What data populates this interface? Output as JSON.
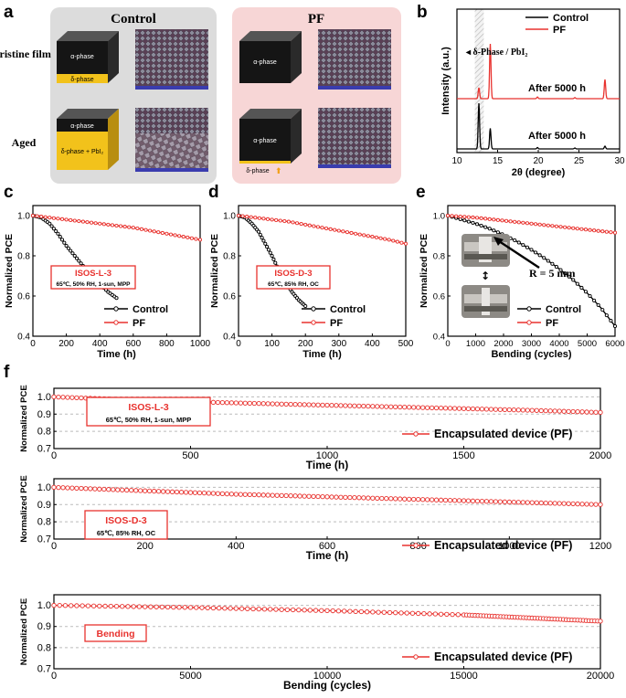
{
  "panel_labels": {
    "a": "a",
    "b": "b",
    "c": "c",
    "d": "d",
    "e": "e",
    "f": "f"
  },
  "schematic": {
    "control_title": "Control",
    "pf_title": "PF",
    "row_pristine": "Pristine film",
    "row_aged": "Aged",
    "alpha_phase": "α-phase",
    "delta_phase": "δ-phase",
    "delta_phase_pbi2": "δ-phase + PbI₂"
  },
  "colors": {
    "control": "#000000",
    "pf": "#e8322e",
    "box": "#e8322e"
  },
  "chart_data": [
    {
      "id": "b",
      "type": "line",
      "title": "",
      "xlabel": "2θ (degree)",
      "ylabel": "Intensity (a.u.)",
      "xlim": [
        10,
        30
      ],
      "xticks": [
        10,
        15,
        20,
        25,
        30
      ],
      "legend": [
        "Control",
        "PF"
      ],
      "annotations": [
        "δ-Phase / PbI₂",
        "After 5000 h",
        "After 5000 h"
      ],
      "series": [
        {
          "name": "Control",
          "peaks": [
            [
              12.7,
              1.0
            ],
            [
              14.1,
              0.45
            ],
            [
              19.9,
              0.03
            ],
            [
              24.5,
              0.02
            ],
            [
              28.2,
              0.06
            ]
          ]
        },
        {
          "name": "PF",
          "peaks": [
            [
              12.7,
              0.2
            ],
            [
              14.1,
              1.0
            ],
            [
              19.9,
              0.03
            ],
            [
              24.5,
              0.02
            ],
            [
              28.2,
              0.35
            ]
          ]
        }
      ]
    },
    {
      "id": "c",
      "type": "line",
      "xlabel": "Time (h)",
      "ylabel": "Normalized PCE",
      "xlim": [
        0,
        1000
      ],
      "ylim": [
        0.4,
        1.05
      ],
      "xticks": [
        0,
        200,
        400,
        600,
        800,
        1000
      ],
      "yticks": [
        0.4,
        0.6,
        0.8,
        1.0
      ],
      "box_title": "ISOS-L-3",
      "box_condition": "65℃, 50% RH, 1-sun, MPP",
      "legend": [
        "Control",
        "PF"
      ],
      "series": [
        {
          "name": "Control",
          "x": [
            0,
            50,
            100,
            150,
            200,
            250,
            300,
            350,
            400,
            450,
            500
          ],
          "y": [
            1.0,
            0.99,
            0.96,
            0.91,
            0.85,
            0.8,
            0.75,
            0.7,
            0.66,
            0.62,
            0.59
          ]
        },
        {
          "name": "PF",
          "x": [
            0,
            100,
            200,
            300,
            400,
            500,
            600,
            700,
            800,
            900,
            1000
          ],
          "y": [
            1.0,
            0.99,
            0.98,
            0.97,
            0.96,
            0.95,
            0.94,
            0.925,
            0.91,
            0.895,
            0.88
          ]
        }
      ]
    },
    {
      "id": "d",
      "type": "line",
      "xlabel": "Time (h)",
      "ylabel": "Normalized PCE",
      "xlim": [
        0,
        500
      ],
      "ylim": [
        0.4,
        1.05
      ],
      "xticks": [
        0,
        100,
        200,
        300,
        400,
        500
      ],
      "yticks": [
        0.4,
        0.6,
        0.8,
        1.0
      ],
      "box_title": "ISOS-D-3",
      "box_condition": "65℃, 85% RH, OC",
      "legend": [
        "Control",
        "PF"
      ],
      "series": [
        {
          "name": "Control",
          "x": [
            0,
            20,
            40,
            60,
            80,
            100,
            120,
            140,
            160,
            180,
            200
          ],
          "y": [
            1.0,
            0.99,
            0.96,
            0.92,
            0.86,
            0.8,
            0.73,
            0.67,
            0.62,
            0.58,
            0.55
          ]
        },
        {
          "name": "PF",
          "x": [
            0,
            50,
            100,
            150,
            200,
            250,
            300,
            350,
            400,
            450,
            500
          ],
          "y": [
            1.0,
            0.99,
            0.98,
            0.97,
            0.955,
            0.94,
            0.925,
            0.91,
            0.895,
            0.88,
            0.86
          ]
        }
      ]
    },
    {
      "id": "e",
      "type": "line",
      "xlabel": "Bending (cycles)",
      "ylabel": "Normalized PCE",
      "xlim": [
        0,
        6000
      ],
      "ylim": [
        0.4,
        1.05
      ],
      "xticks": [
        0,
        1000,
        2000,
        3000,
        4000,
        5000,
        6000
      ],
      "yticks": [
        0.4,
        0.6,
        0.8,
        1.0
      ],
      "annotation": "R = 5 mm",
      "legend": [
        "Control",
        "PF"
      ],
      "series": [
        {
          "name": "Control",
          "x": [
            0,
            500,
            1000,
            1500,
            2000,
            2500,
            3000,
            3500,
            4000,
            4500,
            5000,
            5500,
            6000
          ],
          "y": [
            1.0,
            0.98,
            0.96,
            0.935,
            0.905,
            0.87,
            0.83,
            0.785,
            0.735,
            0.68,
            0.615,
            0.54,
            0.45
          ]
        },
        {
          "name": "PF",
          "x": [
            0,
            1000,
            2000,
            3000,
            4000,
            5000,
            6000
          ],
          "y": [
            1.0,
            0.99,
            0.975,
            0.96,
            0.945,
            0.93,
            0.915
          ]
        }
      ]
    },
    {
      "id": "f1",
      "type": "line",
      "xlabel": "Time (h)",
      "ylabel": "Normalized PCE",
      "xlim": [
        0,
        2000
      ],
      "ylim": [
        0.7,
        1.05
      ],
      "xticks": [
        0,
        500,
        1000,
        1500,
        2000
      ],
      "yticks": [
        0.7,
        0.8,
        0.9,
        1.0
      ],
      "box_title": "ISOS-L-3",
      "box_condition": "65℃, 50% RH, 1-sun, MPP",
      "legend": [
        "Encapsulated device (PF)"
      ],
      "series": [
        {
          "name": "Encapsulated device (PF)",
          "x": [
            0,
            250,
            500,
            750,
            1000,
            1250,
            1500,
            1750,
            2000
          ],
          "y": [
            1.0,
            0.985,
            0.972,
            0.962,
            0.952,
            0.942,
            0.932,
            0.922,
            0.91
          ]
        }
      ]
    },
    {
      "id": "f2",
      "type": "line",
      "xlabel": "Time (h)",
      "ylabel": "Normalized PCE",
      "xlim": [
        0,
        1200
      ],
      "ylim": [
        0.7,
        1.05
      ],
      "xticks": [
        0,
        200,
        400,
        600,
        800,
        1000,
        1200
      ],
      "yticks": [
        0.7,
        0.8,
        0.9,
        1.0
      ],
      "box_title": "ISOS-D-3",
      "box_condition": "65℃, 85% RH, OC",
      "legend": [
        "Encapsulated device (PF)"
      ],
      "series": [
        {
          "name": "Encapsulated device (PF)",
          "x": [
            0,
            200,
            400,
            600,
            800,
            1000,
            1200
          ],
          "y": [
            1.0,
            0.98,
            0.96,
            0.945,
            0.93,
            0.915,
            0.9
          ]
        }
      ]
    },
    {
      "id": "f3",
      "type": "line",
      "xlabel": "Bending (cycles)",
      "ylabel": "Normalized PCE",
      "xlim": [
        0,
        20000
      ],
      "ylim": [
        0.7,
        1.05
      ],
      "xticks": [
        0,
        5000,
        10000,
        15000,
        20000
      ],
      "yticks": [
        0.7,
        0.8,
        0.9,
        1.0
      ],
      "box_title": "Bending",
      "box_condition": "",
      "legend": [
        "Encapsulated device (PF)"
      ],
      "series": [
        {
          "name": "Encapsulated device (PF)",
          "x": [
            0,
            5000,
            10000,
            15000,
            17500,
            20000
          ],
          "y": [
            1.0,
            0.99,
            0.975,
            0.955,
            0.94,
            0.925
          ]
        }
      ]
    }
  ]
}
